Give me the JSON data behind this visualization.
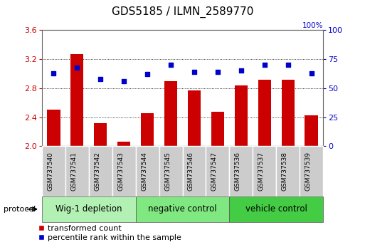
{
  "title": "GDS5185 / ILMN_2589770",
  "samples": [
    "GSM737540",
    "GSM737541",
    "GSM737542",
    "GSM737543",
    "GSM737544",
    "GSM737545",
    "GSM737546",
    "GSM737547",
    "GSM737536",
    "GSM737537",
    "GSM737538",
    "GSM737539"
  ],
  "bar_values": [
    2.5,
    3.27,
    2.32,
    2.06,
    2.46,
    2.9,
    2.77,
    2.47,
    2.84,
    2.92,
    2.92,
    2.43
  ],
  "percentile_values": [
    63,
    68,
    58,
    56,
    62,
    70,
    64,
    64,
    65,
    70,
    70,
    63
  ],
  "bar_color": "#cc0000",
  "dot_color": "#0000cc",
  "ylim_left": [
    2.0,
    3.6
  ],
  "ylim_right": [
    0,
    100
  ],
  "yticks_left": [
    2.0,
    2.4,
    2.8,
    3.2,
    3.6
  ],
  "yticks_right": [
    0,
    25,
    50,
    75,
    100
  ],
  "groups": [
    {
      "label": "Wig-1 depletion",
      "start": 0,
      "end": 4,
      "color": "#b3f0b3"
    },
    {
      "label": "negative control",
      "start": 4,
      "end": 8,
      "color": "#80e880"
    },
    {
      "label": "vehicle control",
      "start": 8,
      "end": 12,
      "color": "#44cc44"
    }
  ],
  "sample_box_color": "#cccccc",
  "protocol_label": "protocol",
  "legend_bar_label": "transformed count",
  "legend_dot_label": "percentile rank within the sample",
  "bar_width": 0.55,
  "background_color": "#ffffff",
  "plot_bg_color": "#ffffff",
  "grid_color": "#000000",
  "label_color_left": "#cc0000",
  "label_color_right": "#0000cc",
  "pct_right_label": "100%"
}
